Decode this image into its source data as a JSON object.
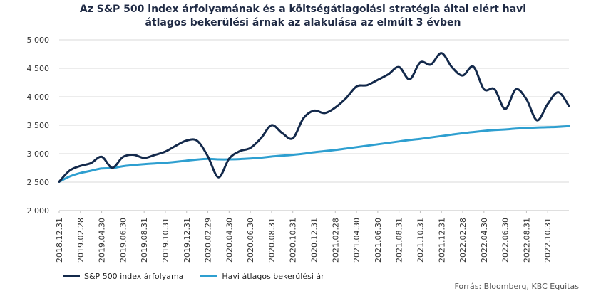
{
  "chart_data": {
    "type": "line",
    "title_line1": "Az S&P 500 index árfolyamának és a költségátlagolási stratégia által elért havi",
    "title_line2": "átlagos bekerülési árnak az alakulása az elmúlt 3 évben",
    "ylim": [
      2000,
      5000
    ],
    "yticks": [
      2000,
      2500,
      3000,
      3500,
      4000,
      4500,
      5000
    ],
    "ytick_labels": [
      "2 000",
      "2 500",
      "3 000",
      "3 500",
      "4 000",
      "4 500",
      "5 000"
    ],
    "x": [
      "2018.12.31",
      "2019.01.31",
      "2019.02.28",
      "2019.03.31",
      "2019.04.30",
      "2019.05.31",
      "2019.06.30",
      "2019.07.31",
      "2019.08.31",
      "2019.09.30",
      "2019.10.31",
      "2019.11.30",
      "2019.12.31",
      "2020.01.31",
      "2020.02.29",
      "2020.03.31",
      "2020.04.30",
      "2020.05.31",
      "2020.06.30",
      "2020.07.31",
      "2020.08.31",
      "2020.09.30",
      "2020.10.31",
      "2020.11.30",
      "2020.12.31",
      "2021.01.31",
      "2021.02.28",
      "2021.03.31",
      "2021.04.30",
      "2021.05.31",
      "2021.06.30",
      "2021.07.31",
      "2021.08.31",
      "2021.09.30",
      "2021.10.31",
      "2021.11.30",
      "2021.12.31",
      "2022.01.31",
      "2022.02.28",
      "2022.03.31",
      "2022.04.30",
      "2022.05.31",
      "2022.06.30",
      "2022.07.31",
      "2022.08.31",
      "2022.09.30",
      "2022.10.31",
      "2022.11.30",
      "2022.12.31"
    ],
    "xtick_labels": [
      "2018.12.31",
      "2019.02.28",
      "2019.04.30",
      "2019.06.30",
      "2019.08.31",
      "2019.10.31",
      "2019.12.31",
      "2020.02.29",
      "2020.04.30",
      "2020.06.30",
      "2020.08.31",
      "2020.10.31",
      "2020.12.31",
      "2021.02.28",
      "2021.04.30",
      "2021.06.30",
      "2021.08.31",
      "2021.10.31",
      "2021.12.31",
      "2022.02.28",
      "2022.04.30",
      "2022.06.30",
      "2022.08.31",
      "2022.10.31"
    ],
    "series": [
      {
        "name": "S&P 500 index árfolyama",
        "color": "#13294b",
        "values": [
          2507,
          2705,
          2785,
          2835,
          2946,
          2752,
          2942,
          2980,
          2926,
          2977,
          3038,
          3141,
          3231,
          3226,
          2954,
          2585,
          2912,
          3044,
          3100,
          3271,
          3500,
          3363,
          3270,
          3622,
          3756,
          3714,
          3811,
          3973,
          4181,
          4204,
          4298,
          4395,
          4523,
          4308,
          4605,
          4567,
          4766,
          4516,
          4374,
          4530,
          4132,
          4132,
          3785,
          4130,
          3955,
          3586,
          3872,
          4080,
          3839
        ]
      },
      {
        "name": "Havi átlagos bekerülési ár",
        "color": "#2e9fd0",
        "values": [
          2507,
          2600,
          2660,
          2700,
          2740,
          2748,
          2780,
          2800,
          2815,
          2828,
          2840,
          2858,
          2878,
          2898,
          2910,
          2900,
          2900,
          2905,
          2915,
          2930,
          2950,
          2965,
          2980,
          3000,
          3025,
          3045,
          3065,
          3090,
          3115,
          3140,
          3165,
          3190,
          3215,
          3240,
          3260,
          3285,
          3310,
          3335,
          3360,
          3380,
          3400,
          3415,
          3425,
          3440,
          3450,
          3460,
          3465,
          3472,
          3485
        ]
      }
    ]
  },
  "source_text": "Forrás: Bloomberg, KBC Equitas"
}
